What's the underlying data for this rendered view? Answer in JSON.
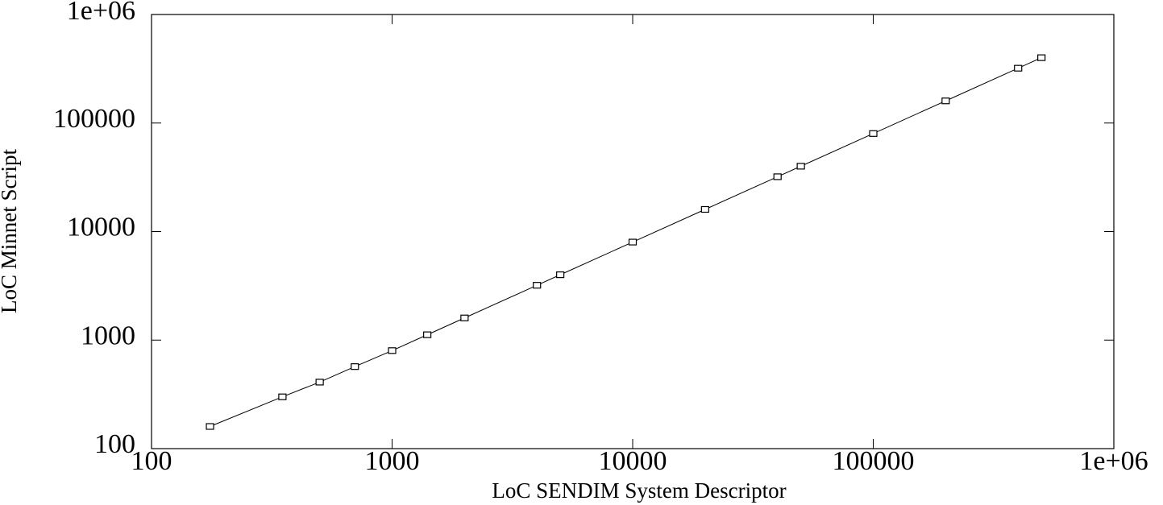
{
  "chart_data": {
    "type": "line",
    "x_label": "LoC SENDIM System Descriptor",
    "y_label": "LoC Minnet Script",
    "xscale": "log",
    "yscale": "log",
    "xlim": [
      100,
      1000000
    ],
    "ylim": [
      100,
      1000000
    ],
    "xticks": [
      100,
      1000,
      10000,
      100000,
      {
        "value": 1000000,
        "label": "1e+06"
      }
    ],
    "yticks": [
      100,
      1000,
      10000,
      100000,
      {
        "value": 1000000,
        "label": "1e+06"
      }
    ],
    "series": [
      {
        "color": "#000000",
        "marker": "square",
        "x": [
          175,
          350,
          500,
          700,
          1000,
          1400,
          2000,
          4000,
          5000,
          10000,
          20000,
          40000,
          50000,
          100000,
          200000,
          400000,
          500000
        ],
        "values": [
          160,
          300,
          410,
          570,
          800,
          1120,
          1600,
          3200,
          4000,
          8000,
          16000,
          32000,
          40000,
          80000,
          160000,
          320000,
          400000
        ]
      }
    ]
  }
}
